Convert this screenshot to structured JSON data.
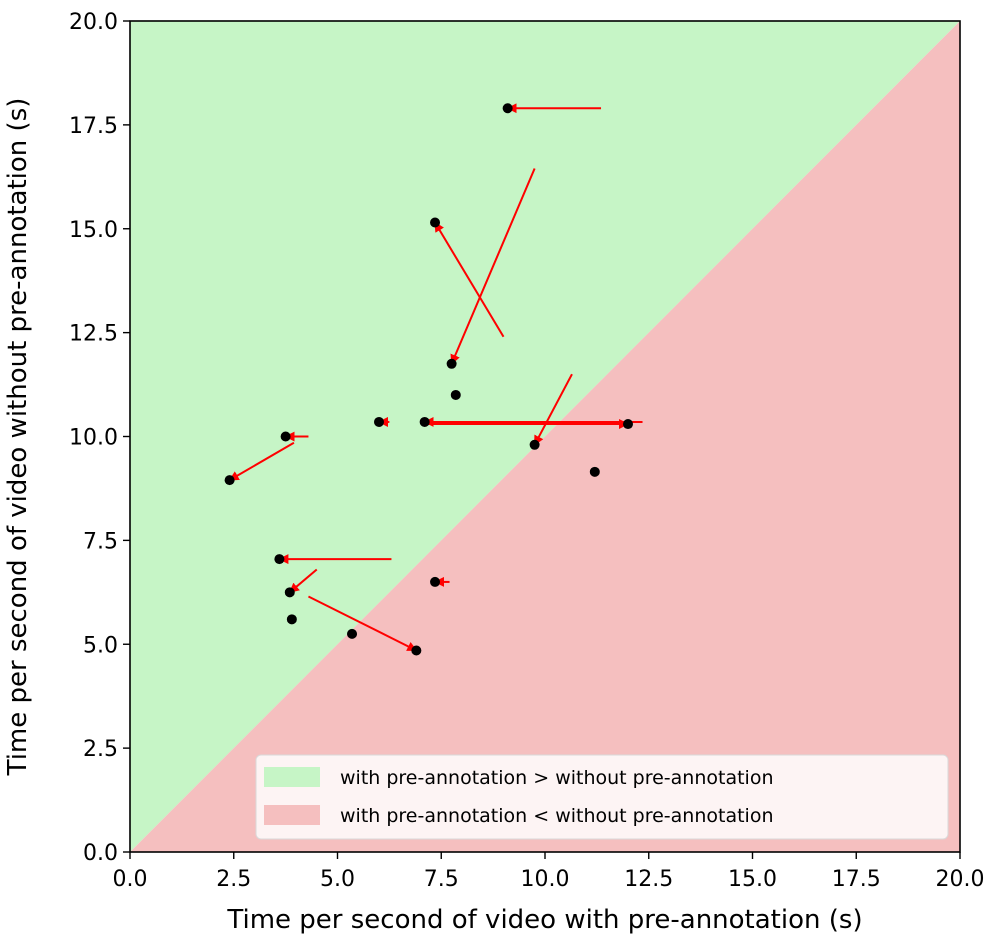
{
  "chart_data": {
    "type": "scatter",
    "xlabel": "Time per second of video with pre-annotation (s)",
    "ylabel": "Time per second of video without pre-annotation (s)",
    "xlim": [
      0,
      20
    ],
    "ylim": [
      0,
      20
    ],
    "x_ticks": [
      "0.0",
      "2.5",
      "5.0",
      "7.5",
      "10.0",
      "12.5",
      "15.0",
      "17.5",
      "20.0"
    ],
    "y_ticks": [
      "0.0",
      "2.5",
      "5.0",
      "7.5",
      "10.0",
      "12.5",
      "15.0",
      "17.5",
      "20.0"
    ],
    "regions": [
      {
        "name": "with pre-annotation > without pre-annotation",
        "color": "#c6f5c6",
        "side": "upper-left"
      },
      {
        "name": "with pre-annotation < without pre-annotation",
        "color": "#f5bfbf",
        "side": "lower-right"
      }
    ],
    "legend": {
      "location": "lower-right",
      "entries": [
        "with pre-annotation > without pre-annotation",
        "with pre-annotation < without pre-annotation"
      ]
    },
    "points": [
      {
        "x": 9.1,
        "y": 17.9
      },
      {
        "x": 7.35,
        "y": 15.15
      },
      {
        "x": 7.75,
        "y": 11.75
      },
      {
        "x": 7.85,
        "y": 11.0
      },
      {
        "x": 6.0,
        "y": 10.35
      },
      {
        "x": 7.1,
        "y": 10.35
      },
      {
        "x": 12.0,
        "y": 10.3
      },
      {
        "x": 3.75,
        "y": 10.0
      },
      {
        "x": 9.75,
        "y": 9.8
      },
      {
        "x": 11.2,
        "y": 9.15
      },
      {
        "x": 2.4,
        "y": 8.95
      },
      {
        "x": 3.6,
        "y": 7.05
      },
      {
        "x": 7.35,
        "y": 6.5
      },
      {
        "x": 3.85,
        "y": 6.25
      },
      {
        "x": 3.9,
        "y": 5.6
      },
      {
        "x": 5.35,
        "y": 5.25
      },
      {
        "x": 6.9,
        "y": 4.85
      }
    ],
    "arrows": [
      {
        "from": [
          11.35,
          17.9
        ],
        "to": [
          9.1,
          17.9
        ]
      },
      {
        "from": [
          9.0,
          12.4
        ],
        "to": [
          7.35,
          15.15
        ]
      },
      {
        "from": [
          9.75,
          16.45
        ],
        "to": [
          7.75,
          11.75
        ]
      },
      {
        "from": [
          6.25,
          10.35
        ],
        "to": [
          6.0,
          10.35
        ]
      },
      {
        "from": [
          12.35,
          10.35
        ],
        "to": [
          7.1,
          10.35
        ]
      },
      {
        "from": [
          7.1,
          10.3
        ],
        "to": [
          12.0,
          10.3
        ]
      },
      {
        "from": [
          4.3,
          10.0
        ],
        "to": [
          3.75,
          10.0
        ]
      },
      {
        "from": [
          3.95,
          9.85
        ],
        "to": [
          2.4,
          8.95
        ]
      },
      {
        "from": [
          10.65,
          11.5
        ],
        "to": [
          9.75,
          9.8
        ]
      },
      {
        "from": [
          6.3,
          7.05
        ],
        "to": [
          3.6,
          7.05
        ]
      },
      {
        "from": [
          7.7,
          6.5
        ],
        "to": [
          7.35,
          6.5
        ]
      },
      {
        "from": [
          4.5,
          6.8
        ],
        "to": [
          3.85,
          6.25
        ]
      },
      {
        "from": [
          4.3,
          6.15
        ],
        "to": [
          6.9,
          4.85
        ]
      }
    ]
  }
}
